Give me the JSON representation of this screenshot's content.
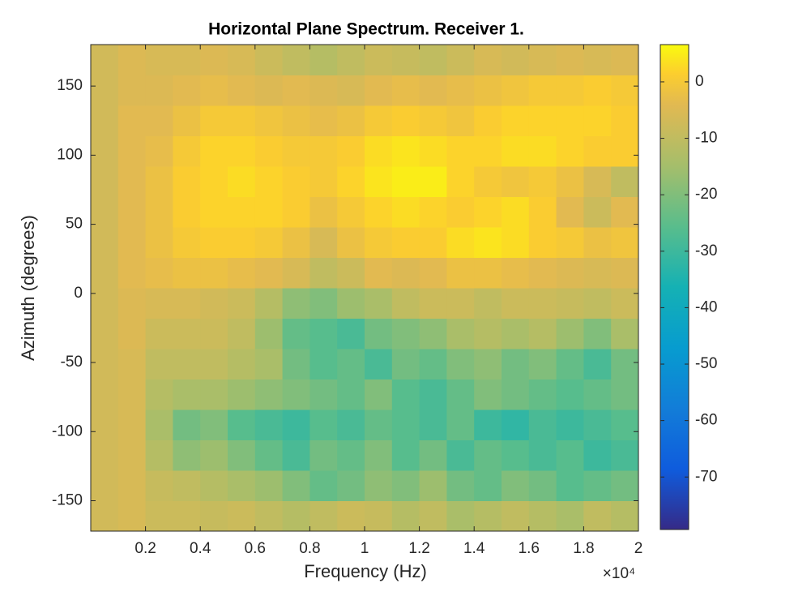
{
  "chart_data": {
    "type": "heatmap",
    "title": "Horizontal Plane Spectrum. Receiver 1.",
    "x_label": "Frequency (Hz)",
    "y_label": "Azimuth (degrees)",
    "x_exponent_label": "×10⁴",
    "colormap": "parula",
    "x": [
      500,
      1500,
      2500,
      3500,
      4500,
      5500,
      6500,
      7500,
      8500,
      9500,
      10500,
      11500,
      12500,
      13500,
      14500,
      15500,
      16500,
      17500,
      18500,
      19500
    ],
    "y": [
      -161,
      -139,
      -117,
      -95,
      -73,
      -51,
      -29,
      -7,
      15,
      37,
      59,
      81,
      103,
      125,
      147,
      169
    ],
    "z": [
      [
        -7,
        -6,
        -8,
        -8,
        -9,
        -8,
        -10,
        -12,
        -10,
        -8,
        -9,
        -12,
        -10,
        -14,
        -12,
        -10,
        -12,
        -14,
        -10,
        -12
      ],
      [
        -7,
        -6,
        -9,
        -10,
        -12,
        -14,
        -16,
        -20,
        -24,
        -22,
        -18,
        -20,
        -16,
        -22,
        -24,
        -20,
        -22,
        -26,
        -24,
        -22
      ],
      [
        -7,
        -6,
        -12,
        -18,
        -16,
        -20,
        -24,
        -28,
        -22,
        -24,
        -20,
        -26,
        -22,
        -28,
        -24,
        -26,
        -28,
        -26,
        -30,
        -28
      ],
      [
        -7,
        -6,
        -14,
        -22,
        -20,
        -26,
        -28,
        -30,
        -26,
        -28,
        -24,
        -26,
        -28,
        -24,
        -30,
        -32,
        -28,
        -30,
        -28,
        -26
      ],
      [
        -7,
        -6,
        -12,
        -14,
        -14,
        -16,
        -18,
        -20,
        -22,
        -24,
        -20,
        -26,
        -28,
        -24,
        -20,
        -22,
        -24,
        -26,
        -24,
        -22
      ],
      [
        -7,
        -6,
        -10,
        -10,
        -10,
        -12,
        -14,
        -22,
        -26,
        -24,
        -28,
        -22,
        -24,
        -20,
        -18,
        -22,
        -20,
        -24,
        -28,
        -22
      ],
      [
        -7,
        -5,
        -8,
        -8,
        -8,
        -10,
        -16,
        -24,
        -26,
        -28,
        -22,
        -20,
        -18,
        -14,
        -12,
        -14,
        -12,
        -16,
        -20,
        -14
      ],
      [
        -7,
        -5,
        -6,
        -6,
        -7,
        -8,
        -12,
        -18,
        -20,
        -16,
        -14,
        -10,
        -8,
        -8,
        -10,
        -8,
        -8,
        -9,
        -10,
        -8
      ],
      [
        -7,
        -4,
        -3,
        -2,
        -2,
        -3,
        -4,
        -6,
        -10,
        -8,
        -4,
        -5,
        -4,
        -2,
        -2,
        -3,
        -4,
        -5,
        -6,
        -5
      ],
      [
        -7,
        -4,
        -2,
        0,
        1,
        1,
        0,
        -2,
        -6,
        -2,
        0,
        1,
        1,
        3,
        4,
        3,
        1,
        0,
        -2,
        -1
      ],
      [
        -7,
        -4,
        -2,
        1,
        2,
        2,
        2,
        1,
        -2,
        0,
        2,
        3,
        2,
        1,
        2,
        3,
        1,
        -4,
        -8,
        -4
      ],
      [
        -7,
        -4,
        -2,
        1,
        2,
        3,
        2,
        1,
        0,
        2,
        4,
        5,
        5,
        2,
        0,
        -1,
        0,
        -2,
        -6,
        -10
      ],
      [
        -7,
        -4,
        -3,
        0,
        2,
        2,
        1,
        0,
        0,
        1,
        3,
        4,
        3,
        2,
        2,
        3,
        3,
        2,
        1,
        1
      ],
      [
        -7,
        -4,
        -4,
        -2,
        0,
        0,
        -1,
        -2,
        -3,
        -2,
        0,
        1,
        0,
        -1,
        1,
        2,
        2,
        2,
        2,
        1
      ],
      [
        -7,
        -5,
        -5,
        -4,
        -3,
        -4,
        -5,
        -4,
        -5,
        -6,
        -4,
        -3,
        -4,
        -3,
        -2,
        -1,
        0,
        0,
        1,
        0
      ],
      [
        -7,
        -5,
        -6,
        -6,
        -5,
        -6,
        -8,
        -10,
        -12,
        -10,
        -8,
        -9,
        -10,
        -8,
        -6,
        -7,
        -6,
        -5,
        -6,
        -5
      ]
    ],
    "xlim": [
      0,
      20000
    ],
    "xticks": [
      {
        "value": 2000,
        "label": "0.2"
      },
      {
        "value": 4000,
        "label": "0.4"
      },
      {
        "value": 6000,
        "label": "0.6"
      },
      {
        "value": 8000,
        "label": "0.8"
      },
      {
        "value": 10000,
        "label": "1"
      },
      {
        "value": 12000,
        "label": "1.2"
      },
      {
        "value": 14000,
        "label": "1.4"
      },
      {
        "value": 16000,
        "label": "1.6"
      },
      {
        "value": 18000,
        "label": "1.8"
      },
      {
        "value": 20000,
        "label": "2"
      }
    ],
    "ylim": [
      -172,
      180
    ],
    "yticks": [
      -150,
      -100,
      -50,
      0,
      50,
      100,
      150
    ],
    "clim": [
      -79.3,
      6.6
    ],
    "cticks": [
      -70,
      -60,
      -50,
      -40,
      -30,
      -20,
      -10,
      0
    ]
  }
}
